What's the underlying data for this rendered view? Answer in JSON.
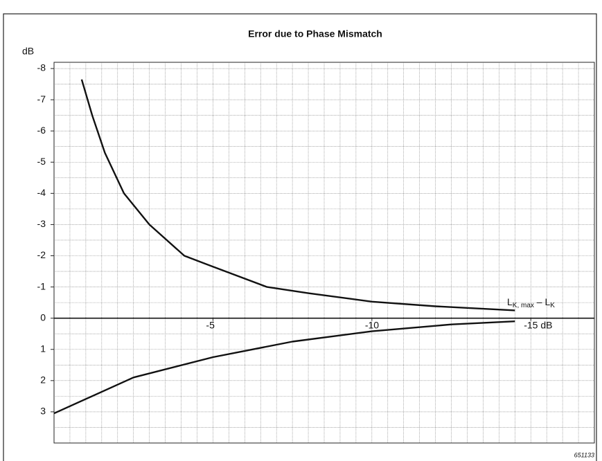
{
  "chart_data": {
    "type": "line",
    "title": "Error due to Phase Mismatch",
    "y_label": "dB",
    "annotation": {
      "parts": [
        "L",
        "K, max",
        " – L",
        "K"
      ]
    },
    "figure_id": "651133",
    "xlim": [
      0,
      -17
    ],
    "ylim": [
      4,
      -8.2
    ],
    "xticks": [
      {
        "value": -5,
        "label": "-5"
      },
      {
        "value": -10,
        "label": "-10"
      },
      {
        "value": -15,
        "label": "-15 dB"
      }
    ],
    "yticks": [
      -8,
      -7,
      -6,
      -5,
      -4,
      -3,
      -2,
      -1,
      0,
      1,
      2,
      3
    ],
    "grid": true,
    "grid_step": 0.5,
    "series": [
      {
        "color": "#111111",
        "x": [
          -0.87,
          -1.2,
          -1.6,
          -2.2,
          -3.0,
          -4.1,
          -5,
          -6.7,
          -8,
          -10,
          -12,
          -14.5
        ],
        "values": [
          -7.65,
          -6.5,
          -5.3,
          -4.0,
          -3.0,
          -2.0,
          -1.65,
          -1.0,
          -0.8,
          -0.53,
          -0.38,
          -0.25
        ]
      },
      {
        "color": "#111111",
        "x": [
          0,
          -2.5,
          -5,
          -7.5,
          -10,
          -12.5,
          -14.5
        ],
        "values": [
          3.05,
          1.9,
          1.25,
          0.75,
          0.42,
          0.2,
          0.1
        ]
      }
    ]
  }
}
